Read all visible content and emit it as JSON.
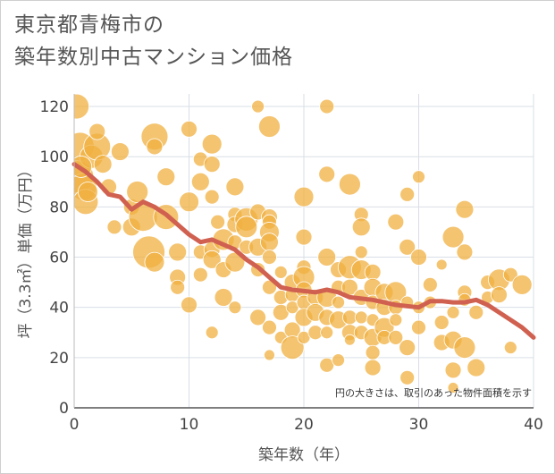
{
  "chart_data": {
    "type": "scatter",
    "title": "東京都青梅市の\n築年数別中古マンション価格",
    "xlabel": "築年数（年）",
    "ylabel": "坪（3.3㎡）単価（万円）",
    "note": "円の大きさは、取引のあった物件面積を示す",
    "xlim": [
      0,
      40
    ],
    "ylim": [
      0,
      125
    ],
    "xticks": [
      0,
      10,
      20,
      30,
      40
    ],
    "yticks": [
      0,
      20,
      40,
      60,
      80,
      100,
      120
    ],
    "grid": true,
    "bubble_color": "#f0b040",
    "line_color": "#d06050",
    "trend": [
      [
        0,
        97
      ],
      [
        1,
        94
      ],
      [
        2,
        90
      ],
      [
        3,
        85
      ],
      [
        4,
        84
      ],
      [
        5,
        79
      ],
      [
        6,
        82
      ],
      [
        7,
        80
      ],
      [
        8,
        77
      ],
      [
        9,
        73
      ],
      [
        10,
        69
      ],
      [
        11,
        66
      ],
      [
        12,
        67
      ],
      [
        13,
        65
      ],
      [
        14,
        63
      ],
      [
        15,
        59
      ],
      [
        16,
        56
      ],
      [
        17,
        52
      ],
      [
        18,
        48
      ],
      [
        19,
        47
      ],
      [
        20,
        46.5
      ],
      [
        21,
        46
      ],
      [
        22,
        47
      ],
      [
        23,
        46
      ],
      [
        24,
        44
      ],
      [
        25,
        43.5
      ],
      [
        26,
        43
      ],
      [
        27,
        42
      ],
      [
        28,
        41
      ],
      [
        29,
        40.5
      ],
      [
        30,
        40
      ],
      [
        31,
        42.5
      ],
      [
        32,
        42.5
      ],
      [
        33,
        42
      ],
      [
        34,
        42
      ],
      [
        35,
        43
      ],
      [
        36,
        41
      ],
      [
        37,
        38
      ],
      [
        38,
        35
      ],
      [
        39,
        32
      ],
      [
        40,
        28
      ]
    ],
    "points": [
      [
        0.2,
        120,
        14
      ],
      [
        0.5,
        104,
        16
      ],
      [
        0.3,
        92,
        18
      ],
      [
        0.8,
        88,
        15
      ],
      [
        1,
        82,
        14
      ],
      [
        1.5,
        100,
        13
      ],
      [
        2,
        104,
        15
      ],
      [
        2,
        110,
        9
      ],
      [
        1.2,
        86,
        11
      ],
      [
        0.6,
        96,
        12
      ],
      [
        2.5,
        97,
        10
      ],
      [
        3,
        88,
        9
      ],
      [
        3.5,
        72,
        8
      ],
      [
        4,
        102,
        10
      ],
      [
        5,
        80,
        9
      ],
      [
        5,
        72,
        10
      ],
      [
        5.5,
        86,
        12
      ],
      [
        6,
        76,
        16
      ],
      [
        6.5,
        62,
        18
      ],
      [
        7,
        108,
        15
      ],
      [
        7,
        104,
        9
      ],
      [
        7,
        58,
        11
      ],
      [
        8,
        92,
        10
      ],
      [
        8,
        76,
        14
      ],
      [
        9,
        62,
        10
      ],
      [
        9,
        52,
        9
      ],
      [
        9,
        48,
        8
      ],
      [
        10,
        111,
        9
      ],
      [
        10,
        82,
        11
      ],
      [
        10,
        41,
        9
      ],
      [
        11,
        99,
        8
      ],
      [
        11,
        90,
        10
      ],
      [
        11,
        62,
        8
      ],
      [
        11,
        53,
        8
      ],
      [
        12,
        105,
        11
      ],
      [
        12,
        97,
        9
      ],
      [
        12,
        84,
        8
      ],
      [
        12,
        63,
        9
      ],
      [
        12,
        59,
        10
      ],
      [
        12,
        30,
        7
      ],
      [
        12.5,
        74,
        8
      ],
      [
        13,
        67,
        12
      ],
      [
        13,
        55,
        9
      ],
      [
        13,
        44,
        10
      ],
      [
        14,
        88,
        10
      ],
      [
        14,
        77,
        8
      ],
      [
        14,
        73,
        9
      ],
      [
        14,
        66,
        8
      ],
      [
        14,
        58,
        11
      ],
      [
        14,
        40,
        7
      ],
      [
        15,
        75,
        13
      ],
      [
        15,
        72,
        12
      ],
      [
        15,
        64,
        8
      ],
      [
        16,
        120,
        7
      ],
      [
        16,
        78,
        9
      ],
      [
        16,
        64,
        10
      ],
      [
        16,
        55,
        8
      ],
      [
        16,
        36,
        9
      ],
      [
        17,
        112,
        12
      ],
      [
        17,
        76,
        9
      ],
      [
        17,
        74,
        8
      ],
      [
        17,
        70,
        11
      ],
      [
        17,
        66,
        10
      ],
      [
        17,
        60,
        8
      ],
      [
        17,
        48,
        8
      ],
      [
        17,
        32,
        8
      ],
      [
        17,
        21,
        6
      ],
      [
        18,
        54,
        7
      ],
      [
        18,
        44,
        8
      ],
      [
        18,
        38,
        9
      ],
      [
        18,
        28,
        7
      ],
      [
        19,
        50,
        9
      ],
      [
        19,
        45,
        8
      ],
      [
        19,
        40,
        7
      ],
      [
        19,
        31,
        9
      ],
      [
        19,
        24,
        13
      ],
      [
        20,
        84,
        11
      ],
      [
        20,
        68,
        9
      ],
      [
        20,
        56,
        8
      ],
      [
        20,
        52,
        12
      ],
      [
        20,
        47,
        9
      ],
      [
        20,
        42,
        8
      ],
      [
        20,
        36,
        10
      ],
      [
        20,
        28,
        7
      ],
      [
        21,
        44,
        9
      ],
      [
        21,
        38,
        10
      ],
      [
        21,
        30,
        8
      ],
      [
        22,
        120,
        8
      ],
      [
        22,
        93,
        9
      ],
      [
        22,
        60,
        10
      ],
      [
        22,
        44,
        11
      ],
      [
        22,
        36,
        9
      ],
      [
        22,
        30,
        7
      ],
      [
        22,
        17,
        8
      ],
      [
        23,
        55,
        9
      ],
      [
        23,
        48,
        8
      ],
      [
        23,
        42,
        7
      ],
      [
        23,
        35,
        10
      ],
      [
        23,
        19,
        7
      ],
      [
        24,
        89,
        12
      ],
      [
        24,
        56,
        13
      ],
      [
        24,
        48,
        9
      ],
      [
        24,
        36,
        8
      ],
      [
        24,
        30,
        9
      ],
      [
        24,
        27,
        6
      ],
      [
        25,
        77,
        8
      ],
      [
        25,
        72,
        10
      ],
      [
        25,
        62,
        7
      ],
      [
        25,
        55,
        11
      ],
      [
        25,
        44,
        9
      ],
      [
        25,
        36,
        7
      ],
      [
        25,
        30,
        8
      ],
      [
        26,
        54,
        9
      ],
      [
        26,
        48,
        10
      ],
      [
        26,
        42,
        8
      ],
      [
        26,
        35,
        7
      ],
      [
        26,
        28,
        10
      ],
      [
        26,
        22,
        8
      ],
      [
        26,
        16,
        9
      ],
      [
        27,
        46,
        10
      ],
      [
        27,
        40,
        9
      ],
      [
        27,
        32,
        11
      ],
      [
        27,
        28,
        8
      ],
      [
        28,
        74,
        9
      ],
      [
        28,
        46,
        12
      ],
      [
        28,
        40,
        8
      ],
      [
        28,
        35,
        7
      ],
      [
        28,
        28,
        8
      ],
      [
        29,
        85,
        8
      ],
      [
        29,
        64,
        9
      ],
      [
        29,
        42,
        7
      ],
      [
        29,
        24,
        9
      ],
      [
        29,
        12,
        8
      ],
      [
        30,
        92,
        7
      ],
      [
        30,
        60,
        9
      ],
      [
        30,
        40,
        7
      ],
      [
        30,
        32,
        8
      ],
      [
        31,
        49,
        8
      ],
      [
        31,
        42,
        7
      ],
      [
        32,
        57,
        6
      ],
      [
        32,
        34,
        8
      ],
      [
        32,
        26,
        9
      ],
      [
        33,
        68,
        12
      ],
      [
        33,
        38,
        7
      ],
      [
        33,
        27,
        10
      ],
      [
        33,
        15,
        9
      ],
      [
        33,
        8,
        6
      ],
      [
        34,
        79,
        10
      ],
      [
        34,
        62,
        9
      ],
      [
        34,
        46,
        8
      ],
      [
        34,
        43,
        7
      ],
      [
        34,
        24,
        12
      ],
      [
        35,
        38,
        8
      ],
      [
        35,
        16,
        10
      ],
      [
        36,
        50,
        8
      ],
      [
        36,
        44,
        7
      ],
      [
        37,
        51,
        12
      ],
      [
        37,
        45,
        9
      ],
      [
        38,
        53,
        8
      ],
      [
        38,
        24,
        7
      ],
      [
        39,
        49,
        11
      ]
    ]
  }
}
